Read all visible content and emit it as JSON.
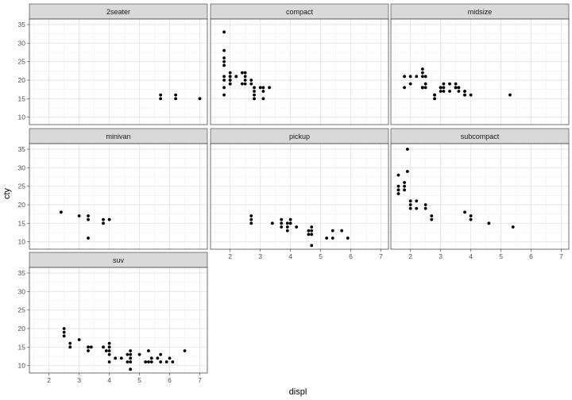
{
  "chart_data": {
    "type": "scatter",
    "xlabel": "displ",
    "ylabel": "cty",
    "xlim": [
      1.35,
      7.25
    ],
    "ylim": [
      8.0,
      36.5
    ],
    "x_ticks": [
      2,
      3,
      4,
      5,
      6,
      7
    ],
    "y_ticks": [
      10,
      15,
      20,
      25,
      30,
      35
    ],
    "grid": true,
    "panels": [
      {
        "label": "2seater",
        "points": [
          [
            5.7,
            16
          ],
          [
            5.7,
            15
          ],
          [
            6.2,
            16
          ],
          [
            6.2,
            15
          ],
          [
            7.0,
            15
          ]
        ]
      },
      {
        "label": "compact",
        "points": [
          [
            1.8,
            18
          ],
          [
            1.8,
            21
          ],
          [
            2.0,
            20
          ],
          [
            2.0,
            21
          ],
          [
            2.8,
            16
          ],
          [
            2.8,
            18
          ],
          [
            3.1,
            18
          ],
          [
            1.8,
            16
          ],
          [
            1.8,
            20
          ],
          [
            2.0,
            19
          ],
          [
            2.0,
            20
          ],
          [
            2.8,
            15
          ],
          [
            2.8,
            17
          ],
          [
            3.1,
            17
          ],
          [
            3.1,
            15
          ],
          [
            2.2,
            21
          ],
          [
            2.2,
            21
          ],
          [
            2.4,
            22
          ],
          [
            2.4,
            19
          ],
          [
            3.0,
            18
          ],
          [
            3.3,
            18
          ],
          [
            1.8,
            26
          ],
          [
            1.8,
            28
          ],
          [
            1.8,
            25
          ],
          [
            1.8,
            24
          ],
          [
            1.8,
            33
          ],
          [
            2.0,
            21
          ],
          [
            2.0,
            22
          ],
          [
            2.0,
            19
          ],
          [
            2.5,
            21
          ],
          [
            2.5,
            19
          ],
          [
            2.5,
            20
          ],
          [
            2.5,
            22
          ],
          [
            2.7,
            19
          ],
          [
            2.7,
            20
          ]
        ]
      },
      {
        "label": "midsize",
        "points": [
          [
            2.4,
            21
          ],
          [
            2.4,
            23
          ],
          [
            3.1,
            18
          ],
          [
            3.5,
            19
          ],
          [
            3.6,
            17
          ],
          [
            2.5,
            18
          ],
          [
            2.8,
            16
          ],
          [
            3.3,
            17
          ],
          [
            3.8,
            17
          ],
          [
            2.4,
            18
          ],
          [
            2.4,
            18
          ],
          [
            3.0,
            18
          ],
          [
            3.0,
            17
          ],
          [
            3.5,
            18
          ],
          [
            1.8,
            21
          ],
          [
            2.0,
            21
          ],
          [
            2.4,
            22
          ],
          [
            2.5,
            19
          ],
          [
            2.5,
            21
          ],
          [
            2.8,
            15
          ],
          [
            3.1,
            17
          ],
          [
            4.0,
            16
          ],
          [
            5.3,
            16
          ],
          [
            3.1,
            19
          ],
          [
            3.8,
            16
          ],
          [
            3.8,
            17
          ],
          [
            2.2,
            21
          ],
          [
            2.4,
            18
          ],
          [
            3.0,
            18
          ],
          [
            3.3,
            19
          ],
          [
            3.5,
            18
          ],
          [
            2.0,
            19
          ],
          [
            1.8,
            18
          ],
          [
            2.8,
            16
          ],
          [
            3.6,
            18
          ],
          [
            3.8,
            16
          ]
        ]
      },
      {
        "label": "minivan",
        "points": [
          [
            2.4,
            18
          ],
          [
            3.0,
            17
          ],
          [
            3.3,
            16
          ],
          [
            3.3,
            17
          ],
          [
            3.3,
            11
          ],
          [
            3.8,
            15
          ],
          [
            3.8,
            16
          ],
          [
            4.0,
            16
          ]
        ]
      },
      {
        "label": "pickup",
        "points": [
          [
            2.7,
            15
          ],
          [
            2.7,
            16
          ],
          [
            2.7,
            17
          ],
          [
            3.4,
            15
          ],
          [
            3.7,
            15
          ],
          [
            3.7,
            14
          ],
          [
            3.9,
            14
          ],
          [
            3.9,
            13
          ],
          [
            4.0,
            15
          ],
          [
            4.0,
            16
          ],
          [
            4.2,
            14
          ],
          [
            4.7,
            14
          ],
          [
            4.7,
            13
          ],
          [
            4.7,
            9
          ],
          [
            4.7,
            12
          ],
          [
            5.2,
            11
          ],
          [
            5.4,
            11
          ],
          [
            5.4,
            13
          ],
          [
            5.7,
            13
          ],
          [
            5.9,
            11
          ],
          [
            4.6,
            13
          ],
          [
            4.6,
            12
          ],
          [
            3.7,
            16
          ],
          [
            3.9,
            15
          ]
        ]
      },
      {
        "label": "subcompact",
        "points": [
          [
            1.6,
            28
          ],
          [
            1.6,
            24
          ],
          [
            1.6,
            25
          ],
          [
            1.6,
            23
          ],
          [
            1.6,
            24
          ],
          [
            1.8,
            26
          ],
          [
            1.8,
            25
          ],
          [
            1.8,
            24
          ],
          [
            1.9,
            29
          ],
          [
            1.9,
            35
          ],
          [
            2.0,
            21
          ],
          [
            2.0,
            20
          ],
          [
            2.0,
            19
          ],
          [
            2.2,
            21
          ],
          [
            2.2,
            19
          ],
          [
            2.5,
            20
          ],
          [
            2.5,
            19
          ],
          [
            2.7,
            17
          ],
          [
            2.7,
            16
          ],
          [
            3.8,
            18
          ],
          [
            4.0,
            17
          ],
          [
            4.0,
            16
          ],
          [
            4.6,
            15
          ],
          [
            5.4,
            14
          ]
        ]
      },
      {
        "label": "suv",
        "points": [
          [
            2.5,
            18
          ],
          [
            2.5,
            19
          ],
          [
            2.5,
            20
          ],
          [
            2.7,
            15
          ],
          [
            2.7,
            16
          ],
          [
            3.0,
            17
          ],
          [
            3.3,
            15
          ],
          [
            3.3,
            14
          ],
          [
            3.4,
            15
          ],
          [
            3.8,
            15
          ],
          [
            4.0,
            16
          ],
          [
            4.0,
            14
          ],
          [
            4.0,
            15
          ],
          [
            4.0,
            13
          ],
          [
            4.0,
            11
          ],
          [
            4.2,
            12
          ],
          [
            4.4,
            12
          ],
          [
            4.6,
            11
          ],
          [
            4.6,
            13
          ],
          [
            4.7,
            14
          ],
          [
            4.7,
            13
          ],
          [
            4.7,
            12
          ],
          [
            4.7,
            9
          ],
          [
            4.7,
            11
          ],
          [
            5.0,
            13
          ],
          [
            5.2,
            11
          ],
          [
            5.3,
            11
          ],
          [
            5.3,
            14
          ],
          [
            5.4,
            11
          ],
          [
            5.4,
            12
          ],
          [
            5.6,
            12
          ],
          [
            5.7,
            13
          ],
          [
            5.7,
            11
          ],
          [
            5.9,
            11
          ],
          [
            6.0,
            12
          ],
          [
            6.1,
            11
          ],
          [
            6.5,
            14
          ],
          [
            3.9,
            14
          ]
        ]
      }
    ]
  }
}
